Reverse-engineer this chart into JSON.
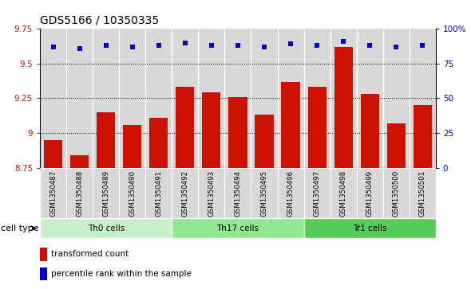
{
  "title": "GDS5166 / 10350335",
  "samples": [
    "GSM1350487",
    "GSM1350488",
    "GSM1350489",
    "GSM1350490",
    "GSM1350491",
    "GSM1350492",
    "GSM1350493",
    "GSM1350494",
    "GSM1350495",
    "GSM1350496",
    "GSM1350497",
    "GSM1350498",
    "GSM1350499",
    "GSM1350500",
    "GSM1350501"
  ],
  "transformed_count": [
    8.95,
    8.84,
    9.15,
    9.06,
    9.11,
    9.33,
    9.29,
    9.26,
    9.13,
    9.37,
    9.33,
    9.62,
    9.28,
    9.07,
    9.2
  ],
  "percentile_rank": [
    87,
    86,
    88,
    87,
    88,
    90,
    88,
    88,
    87,
    89,
    88,
    91,
    88,
    87,
    88
  ],
  "cell_groups": [
    {
      "label": "Th0 cells",
      "start": 0,
      "end": 5,
      "color": "#c8f0c8"
    },
    {
      "label": "Th17 cells",
      "start": 5,
      "end": 10,
      "color": "#90e890"
    },
    {
      "label": "Tr1 cells",
      "start": 10,
      "end": 15,
      "color": "#55cc55"
    }
  ],
  "ylim_left": [
    8.75,
    9.75
  ],
  "ylim_right": [
    0,
    100
  ],
  "yticks_left": [
    8.75,
    9.0,
    9.25,
    9.5,
    9.75
  ],
  "ytick_labels_left": [
    "8.75",
    "9",
    "9.25",
    "9.5",
    "9.75"
  ],
  "yticks_right": [
    0,
    25,
    50,
    75,
    100
  ],
  "ytick_labels_right": [
    "0",
    "25",
    "50",
    "75",
    "100%"
  ],
  "bar_color": "#cc1100",
  "dot_color": "#0000cc",
  "col_bg_color": "#d8d8d8",
  "cell_type_label": "cell type",
  "legend_bar": "transformed count",
  "legend_dot": "percentile rank within the sample",
  "title_fontsize": 10,
  "tick_fontsize": 7.5,
  "label_fontsize": 7.5
}
